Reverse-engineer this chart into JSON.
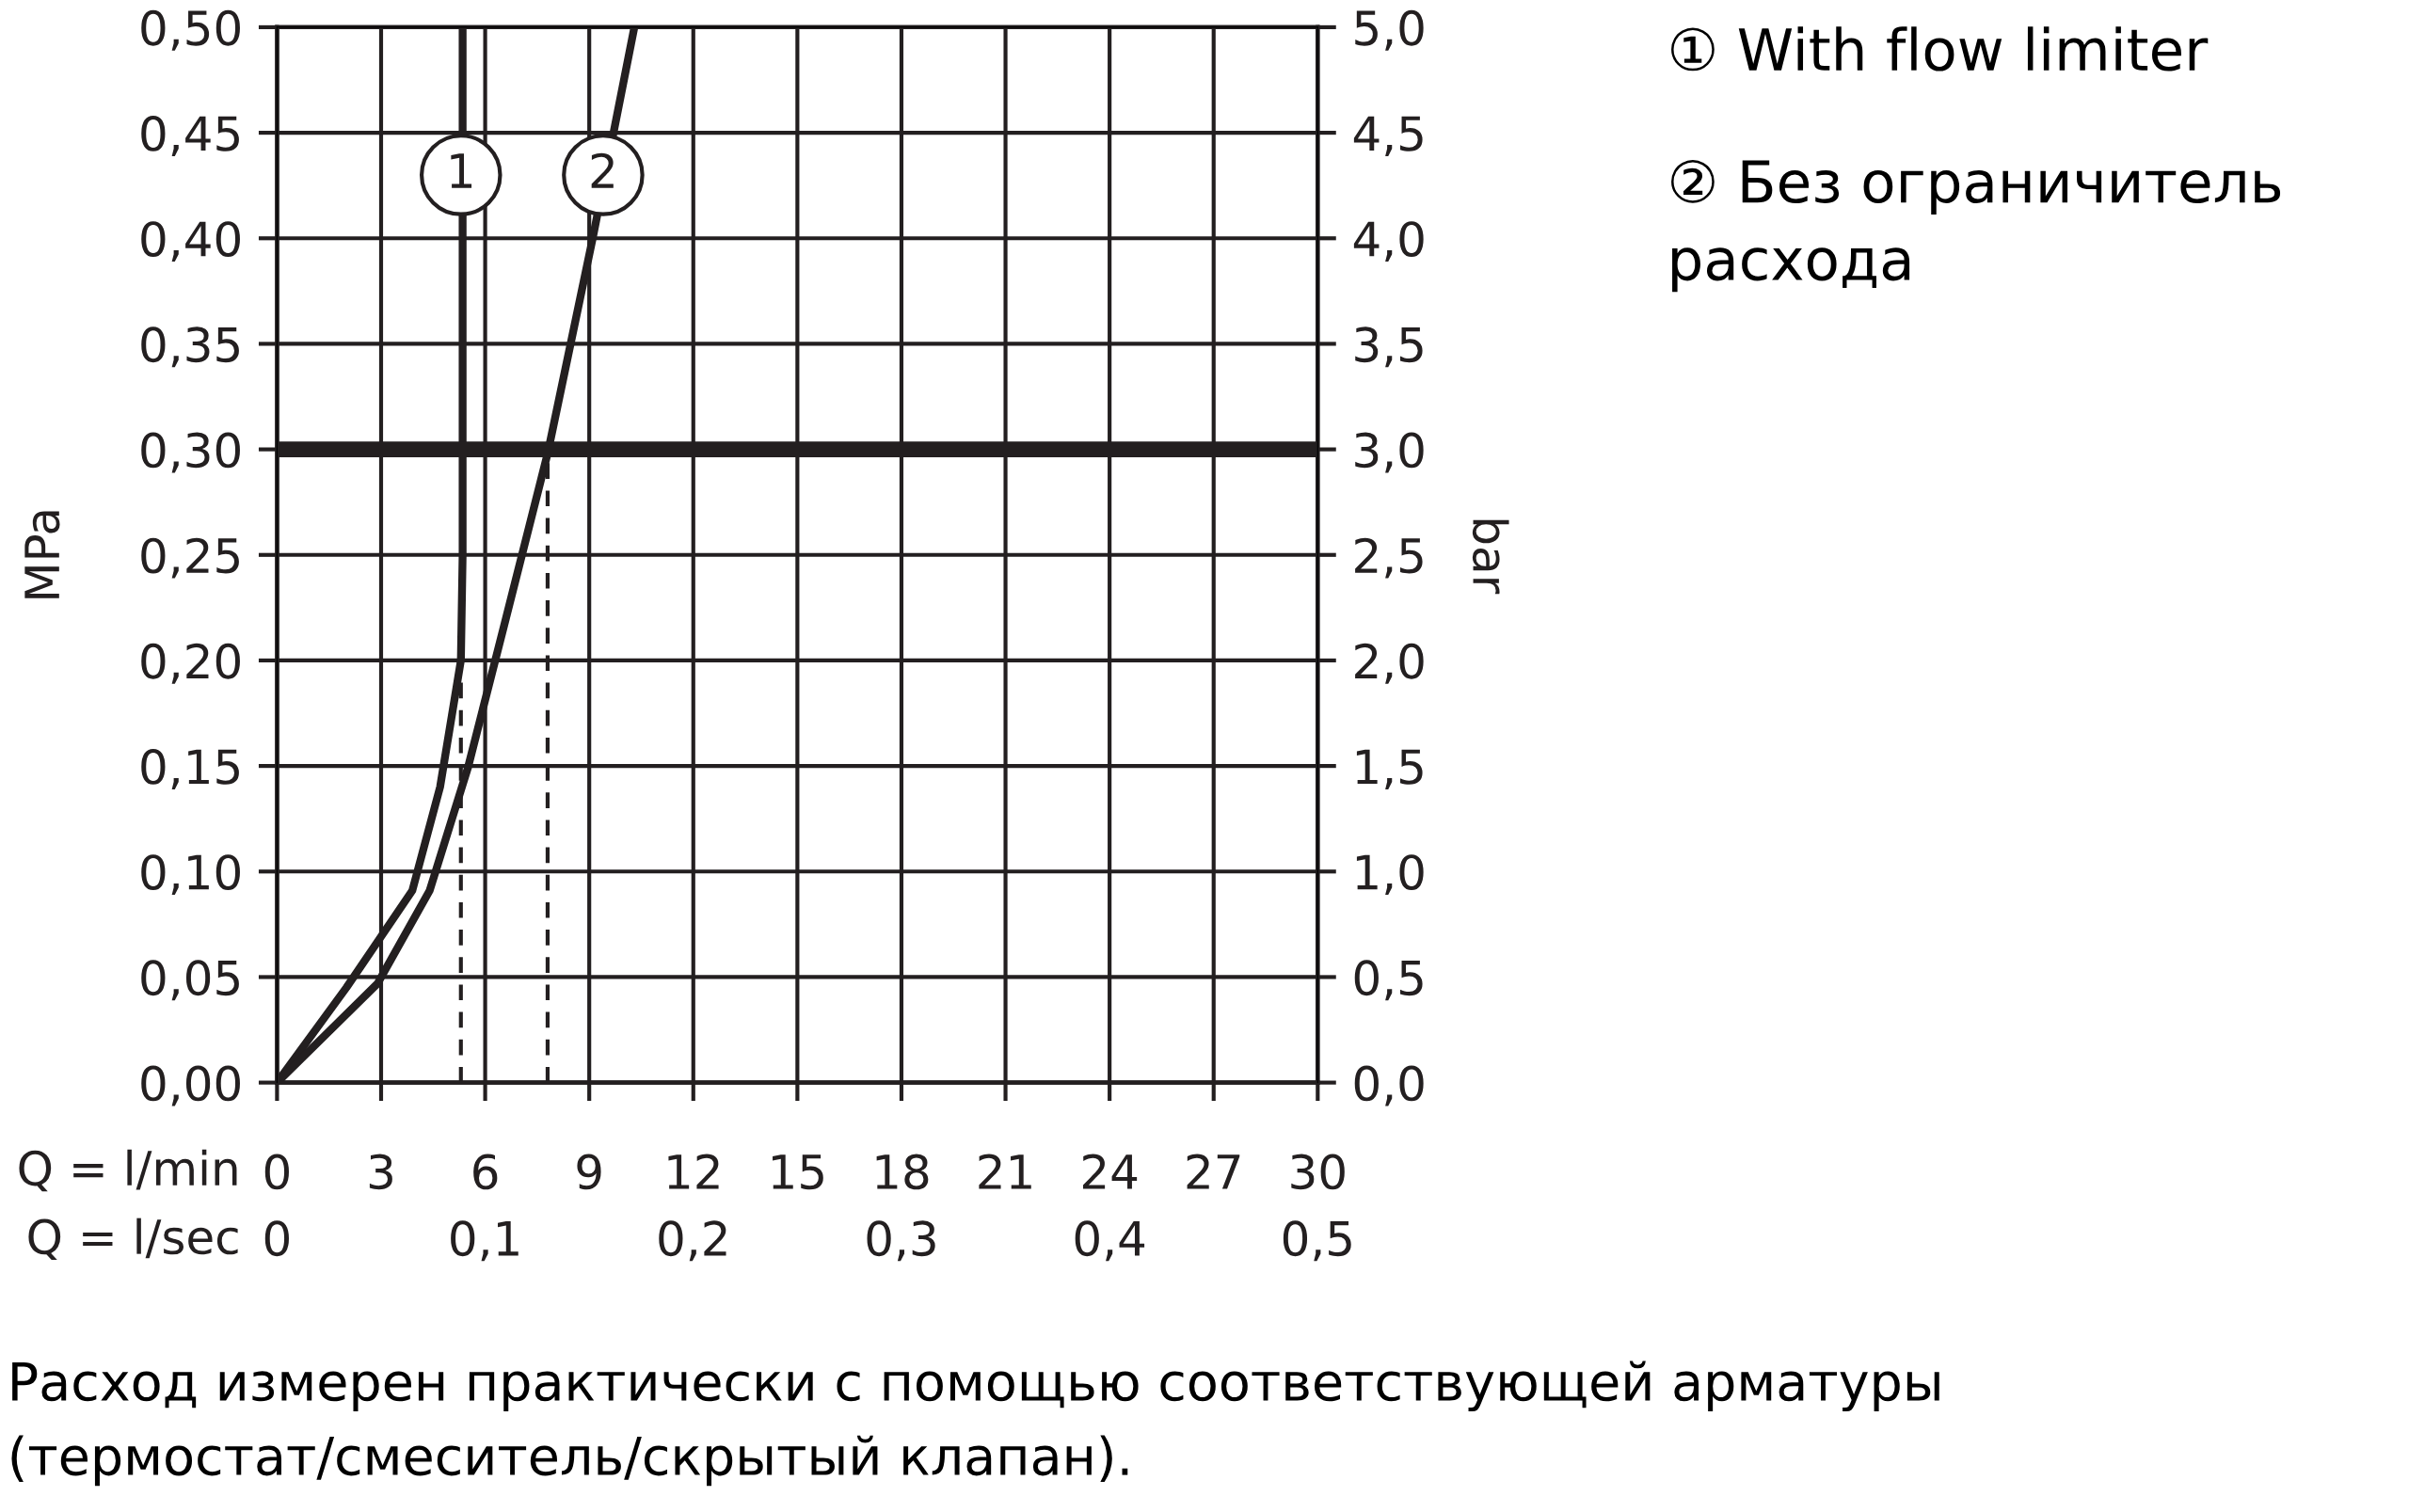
{
  "chart_data": {
    "type": "line",
    "xlabel": "Q = l/min",
    "x2label": "Q = l/sec",
    "ylabel": "MPa",
    "y2label": "bar",
    "xlim": [
      0,
      30
    ],
    "xticks": [
      0,
      3,
      6,
      9,
      12,
      15,
      18,
      21,
      24,
      27,
      30
    ],
    "x2lim": [
      0,
      0.5
    ],
    "x2ticks": [
      0,
      {
        "value": 0.1,
        "label": "0,1"
      },
      {
        "value": 0.2,
        "label": "0,2"
      },
      {
        "value": 0.3,
        "label": "0,3"
      },
      {
        "value": 0.4,
        "label": "0,4"
      },
      {
        "value": 0.5,
        "label": "0,5"
      }
    ],
    "ylim": [
      0,
      0.5
    ],
    "yticks": [
      {
        "value": 0,
        "label": "0,00"
      },
      {
        "value": 0.05,
        "label": "0,05"
      },
      {
        "value": 0.1,
        "label": "0,10"
      },
      {
        "value": 0.15,
        "label": "0,15"
      },
      {
        "value": 0.2,
        "label": "0,20"
      },
      {
        "value": 0.25,
        "label": "0,25"
      },
      {
        "value": 0.3,
        "label": "0,30"
      },
      {
        "value": 0.35,
        "label": "0,35"
      },
      {
        "value": 0.4,
        "label": "0,40"
      },
      {
        "value": 0.45,
        "label": "0,45"
      },
      {
        "value": 0.5,
        "label": "0,50"
      }
    ],
    "y2lim": [
      0,
      5
    ],
    "y2ticks": [
      {
        "value": 0,
        "label": "0,0"
      },
      {
        "value": 0.5,
        "label": "0,5"
      },
      {
        "value": 1,
        "label": "1,0"
      },
      {
        "value": 1.5,
        "label": "1,5"
      },
      {
        "value": 2,
        "label": "2,0"
      },
      {
        "value": 2.5,
        "label": "2,5"
      },
      {
        "value": 3,
        "label": "3,0"
      },
      {
        "value": 3.5,
        "label": "3,5"
      },
      {
        "value": 4,
        "label": "4,0"
      },
      {
        "value": 4.5,
        "label": "4,5"
      },
      {
        "value": 5,
        "label": "5,0"
      }
    ],
    "grid": true,
    "line_style": "solid",
    "series": [
      {
        "color": "#231f20",
        "x": [
          0,
          2,
          3.9,
          4.7,
          5.2,
          5.3,
          5.35,
          5.35
        ],
        "values": [
          0,
          0.045,
          0.091,
          0.14,
          0.19,
          0.2,
          0.25,
          0.5
        ]
      },
      {
        "color": "#231f20",
        "x": [
          0,
          2.9,
          4.4,
          5.5,
          6.6,
          7.8,
          9.1,
          10.3
        ],
        "values": [
          0,
          0.047,
          0.091,
          0.149,
          0.22,
          0.298,
          0.4,
          0.5
        ]
      },
      {
        "color": "#231f20",
        "line_style": "dashed",
        "x": [
          5.3,
          5.3
        ],
        "values": [
          0,
          0.2
        ]
      },
      {
        "color": "#231f20",
        "line_style": "dashed",
        "x": [
          7.8,
          7.8
        ],
        "values": [
          0,
          0.298
        ]
      }
    ],
    "ref_lines": [
      {
        "axis": "y",
        "value": 0.3,
        "color": "#231f20"
      }
    ],
    "annotations": [
      {
        "text": "1",
        "x": 5.3,
        "y": 0.43
      },
      {
        "text": "2",
        "x": 9.4,
        "y": 0.43
      },
      "① With flow limiter",
      "② Без ограничитель расхода",
      "Расход измерен практически с помощью соответствующей арматуры (термостат/смеситель/скрытый клапан)."
    ]
  }
}
